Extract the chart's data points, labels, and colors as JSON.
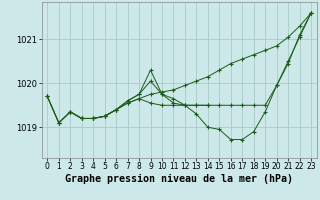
{
  "title": "Graphe pression niveau de la mer (hPa)",
  "bg_color": "#cce8e8",
  "line_color": "#1a5c1a",
  "grid_color": "#aacaca",
  "x_ticks": [
    0,
    1,
    2,
    3,
    4,
    5,
    6,
    7,
    8,
    9,
    10,
    11,
    12,
    13,
    14,
    15,
    16,
    17,
    18,
    19,
    20,
    21,
    22,
    23
  ],
  "y_ticks": [
    1019,
    1020,
    1021
  ],
  "ylim": [
    1018.3,
    1021.85
  ],
  "xlim": [
    -0.5,
    23.5
  ],
  "series": [
    {
      "x": [
        0,
        1,
        2,
        3,
        4,
        5,
        6,
        7,
        8,
        9,
        10,
        11,
        12,
        13,
        14,
        15,
        16,
        17,
        18,
        19,
        20,
        21,
        22,
        23
      ],
      "y": [
        1019.7,
        1019.1,
        1019.35,
        1019.2,
        1019.2,
        1019.25,
        1019.4,
        1019.55,
        1019.65,
        1019.75,
        1019.8,
        1019.85,
        1019.95,
        1020.05,
        1020.15,
        1020.3,
        1020.45,
        1020.55,
        1020.65,
        1020.75,
        1020.85,
        1021.05,
        1021.3,
        1021.6
      ]
    },
    {
      "x": [
        0,
        1,
        2,
        3,
        4,
        5,
        6,
        7,
        8,
        9,
        10,
        11,
        12,
        13,
        14,
        15,
        16,
        17,
        18,
        19,
        20,
        21,
        22,
        23
      ],
      "y": [
        1019.7,
        1019.1,
        1019.35,
        1019.2,
        1019.2,
        1019.25,
        1019.4,
        1019.6,
        1019.75,
        1020.05,
        1019.75,
        1019.65,
        1019.5,
        1019.3,
        1019.0,
        1018.95,
        1018.72,
        1018.72,
        1018.9,
        1019.35,
        1019.95,
        1020.45,
        1021.1,
        1021.6
      ]
    },
    {
      "x": [
        0,
        1,
        2,
        3,
        4,
        5,
        6,
        7,
        8,
        9,
        10,
        11,
        12,
        13,
        14
      ],
      "y": [
        1019.7,
        1019.1,
        1019.35,
        1019.2,
        1019.2,
        1019.25,
        1019.4,
        1019.55,
        1019.65,
        1019.55,
        1019.5,
        1019.5,
        1019.5,
        1019.5,
        1019.5
      ]
    },
    {
      "x": [
        2,
        3,
        4,
        5,
        6,
        7,
        8,
        9,
        10,
        11,
        12,
        13,
        14,
        15,
        16,
        17,
        18,
        19,
        20,
        21,
        22,
        23
      ],
      "y": [
        1019.35,
        1019.2,
        1019.2,
        1019.25,
        1019.4,
        1019.6,
        1019.75,
        1020.3,
        1019.75,
        1019.55,
        1019.5,
        1019.5,
        1019.5,
        1019.5,
        1019.5,
        1019.5,
        1019.5,
        1019.5,
        1019.95,
        1020.5,
        1021.05,
        1021.6
      ]
    }
  ],
  "title_fontsize": 7.2,
  "tick_fontsize": 5.5,
  "marker": "+"
}
